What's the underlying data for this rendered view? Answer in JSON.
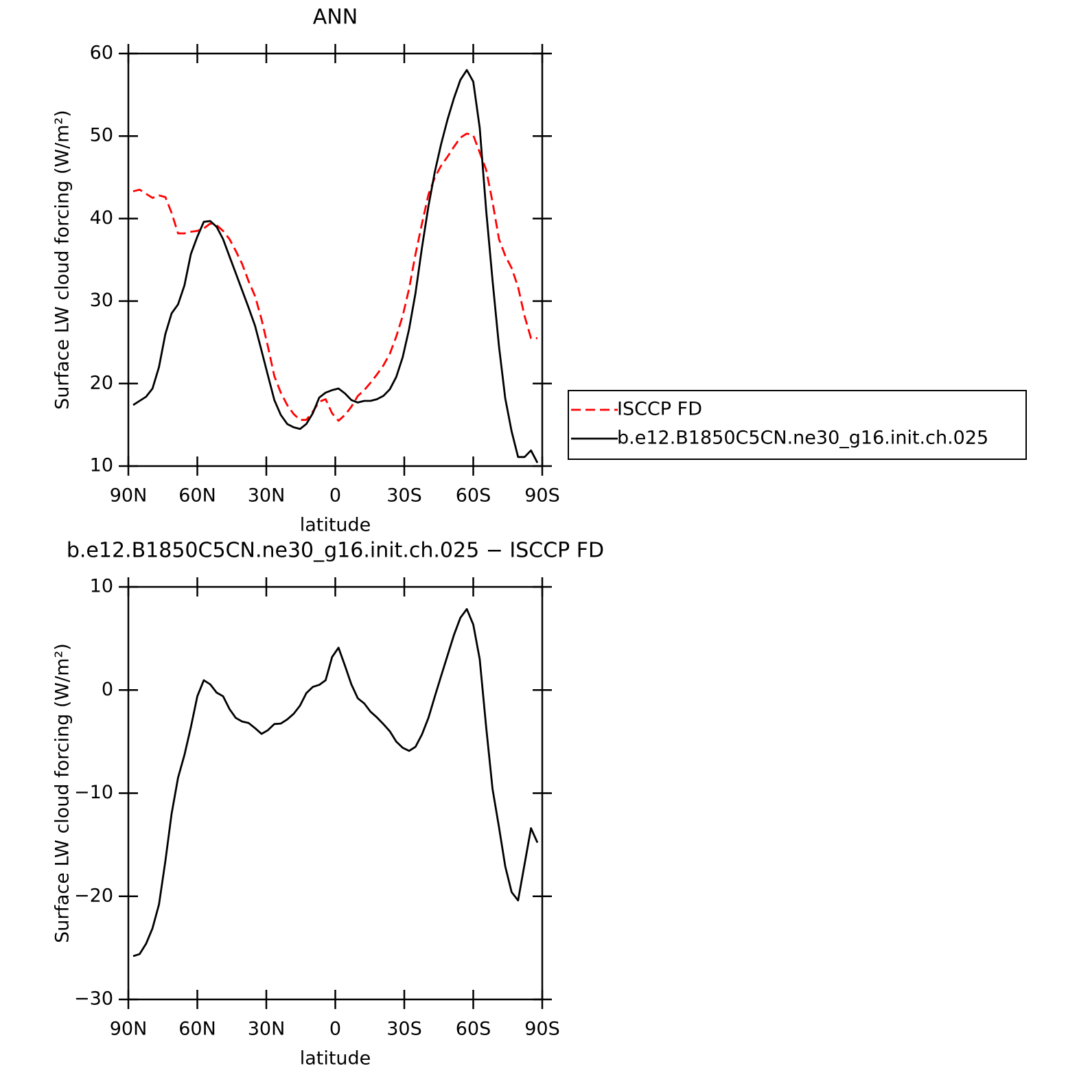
{
  "chart_data": [
    {
      "type": "line",
      "title": "ANN",
      "x_label": "latitude",
      "y_label": "Surface LW cloud forcing (W/m²)",
      "x": [
        87.9,
        85.1,
        82.3,
        79.5,
        76.7,
        73.9,
        71.2,
        68.4,
        65.6,
        62.8,
        60.0,
        57.2,
        54.4,
        51.6,
        48.8,
        46.0,
        43.3,
        40.5,
        37.7,
        34.9,
        32.1,
        29.3,
        26.5,
        23.7,
        20.9,
        18.1,
        15.3,
        12.6,
        9.8,
        7.0,
        4.2,
        1.4,
        -1.4,
        -4.2,
        -7.0,
        -9.8,
        -12.6,
        -15.3,
        -18.1,
        -20.9,
        -23.7,
        -26.5,
        -29.3,
        -32.1,
        -34.9,
        -37.7,
        -40.5,
        -43.3,
        -46.0,
        -48.8,
        -51.6,
        -54.4,
        -57.2,
        -60.0,
        -62.8,
        -65.6,
        -68.4,
        -71.2,
        -73.9,
        -76.7,
        -79.5,
        -82.3,
        -85.1,
        -87.9
      ],
      "series": [
        {
          "name": "ISCCP FD",
          "color": "#ff0000",
          "dashed": true,
          "values": [
            43.3,
            43.5,
            43.0,
            42.5,
            42.8,
            42.6,
            40.7,
            38.2,
            38.2,
            38.4,
            38.5,
            38.8,
            39.4,
            39.2,
            38.5,
            37.5,
            36.1,
            34.5,
            32.4,
            30.6,
            27.8,
            24.5,
            20.9,
            18.9,
            17.4,
            16.3,
            15.6,
            15.6,
            16.6,
            17.8,
            18.1,
            16.4,
            15.5,
            16.2,
            17.2,
            18.5,
            19.2,
            20.1,
            21.1,
            22.2,
            23.6,
            25.7,
            28.2,
            31.5,
            35.7,
            39.4,
            42.9,
            45.0,
            46.4,
            47.5,
            48.7,
            49.8,
            50.3,
            50.1,
            48.0,
            45.9,
            42.0,
            37.5,
            35.5,
            34.0,
            31.7,
            28.2,
            25.5,
            25.5
          ]
        },
        {
          "name": "b.e12.B1850C5CN.ne30_g16.init.ch.025",
          "color": "#000000",
          "dashed": false,
          "values": [
            17.4,
            17.9,
            18.4,
            19.4,
            22.0,
            26.0,
            28.5,
            29.6,
            31.9,
            35.7,
            37.8,
            39.6,
            39.7,
            39.0,
            37.5,
            35.4,
            33.4,
            31.3,
            29.2,
            27.0,
            24.0,
            21.0,
            18.0,
            16.2,
            15.1,
            14.7,
            14.5,
            15.1,
            16.4,
            18.3,
            18.9,
            19.2,
            19.4,
            18.8,
            18.0,
            17.7,
            17.9,
            17.9,
            18.1,
            18.5,
            19.3,
            20.8,
            23.2,
            26.6,
            31.0,
            36.5,
            41.5,
            45.7,
            49.0,
            52.0,
            54.6,
            56.8,
            58.0,
            56.6,
            51.0,
            41.0,
            32.5,
            24.5,
            18.2,
            14.2,
            11.1,
            11.1,
            11.9,
            10.4
          ]
        }
      ],
      "xlim": [
        90,
        -90
      ],
      "xticks": [
        {
          "value": 90,
          "label": "90N"
        },
        {
          "value": 60,
          "label": "60N"
        },
        {
          "value": 30,
          "label": "30N"
        },
        0,
        {
          "value": -30,
          "label": "30S"
        },
        {
          "value": -60,
          "label": "60S"
        },
        {
          "value": -90,
          "label": "90S"
        }
      ],
      "ylim": [
        10,
        60
      ],
      "yticks": [
        10,
        20,
        30,
        40,
        50,
        60
      ],
      "legend": "right"
    },
    {
      "type": "line",
      "title": "b.e12.B1850C5CN.ne30_g16.init.ch.025 − ISCCP FD",
      "x_label": "latitude",
      "y_label": "Surface LW cloud forcing (W/m²)",
      "x": [
        87.9,
        85.1,
        82.3,
        79.5,
        76.7,
        73.9,
        71.2,
        68.4,
        65.6,
        62.8,
        60.0,
        57.2,
        54.4,
        51.6,
        48.8,
        46.0,
        43.3,
        40.5,
        37.7,
        34.9,
        32.1,
        29.3,
        26.5,
        23.7,
        20.9,
        18.1,
        15.3,
        12.6,
        9.8,
        7.0,
        4.2,
        1.4,
        -1.4,
        -4.2,
        -7.0,
        -9.8,
        -12.6,
        -15.3,
        -18.1,
        -20.9,
        -23.7,
        -26.5,
        -29.3,
        -32.1,
        -34.9,
        -37.7,
        -40.5,
        -43.3,
        -46.0,
        -48.8,
        -51.6,
        -54.4,
        -57.2,
        -60.0,
        -62.8,
        -65.6,
        -68.4,
        -71.2,
        -73.9,
        -76.7,
        -79.5,
        -82.3,
        -85.1,
        -87.9
      ],
      "color": "#000000",
      "values": [
        -25.8,
        -25.6,
        -24.6,
        -23.1,
        -20.8,
        -16.6,
        -12.0,
        -8.5,
        -6.3,
        -3.6,
        -0.6,
        0.95,
        0.55,
        -0.25,
        -0.6,
        -1.85,
        -2.7,
        -3.05,
        -3.2,
        -3.7,
        -4.25,
        -3.9,
        -3.3,
        -3.25,
        -2.85,
        -2.3,
        -1.5,
        -0.3,
        0.3,
        0.5,
        0.95,
        3.2,
        4.1,
        2.35,
        0.55,
        -0.8,
        -1.3,
        -2.1,
        -2.65,
        -3.3,
        -4.0,
        -5.0,
        -5.6,
        -5.9,
        -5.5,
        -4.3,
        -2.7,
        -0.6,
        1.35,
        3.35,
        5.35,
        7.0,
        7.85,
        6.35,
        3.0,
        -3.6,
        -9.6,
        -13.3,
        -17.1,
        -19.6,
        -20.4,
        -16.9,
        -13.4,
        -14.8
      ],
      "xlim": [
        90,
        -90
      ],
      "xticks": [
        {
          "value": 90,
          "label": "90N"
        },
        {
          "value": 60,
          "label": "60N"
        },
        {
          "value": 30,
          "label": "30N"
        },
        0,
        {
          "value": -30,
          "label": "30S"
        },
        {
          "value": -60,
          "label": "60S"
        },
        {
          "value": -90,
          "label": "90S"
        }
      ],
      "ylim": [
        -30,
        10
      ],
      "yticks": [
        {
          "value": -30,
          "label": "−30"
        },
        {
          "value": -20,
          "label": "−20"
        },
        {
          "value": -10,
          "label": "−10"
        },
        0,
        10
      ]
    }
  ]
}
